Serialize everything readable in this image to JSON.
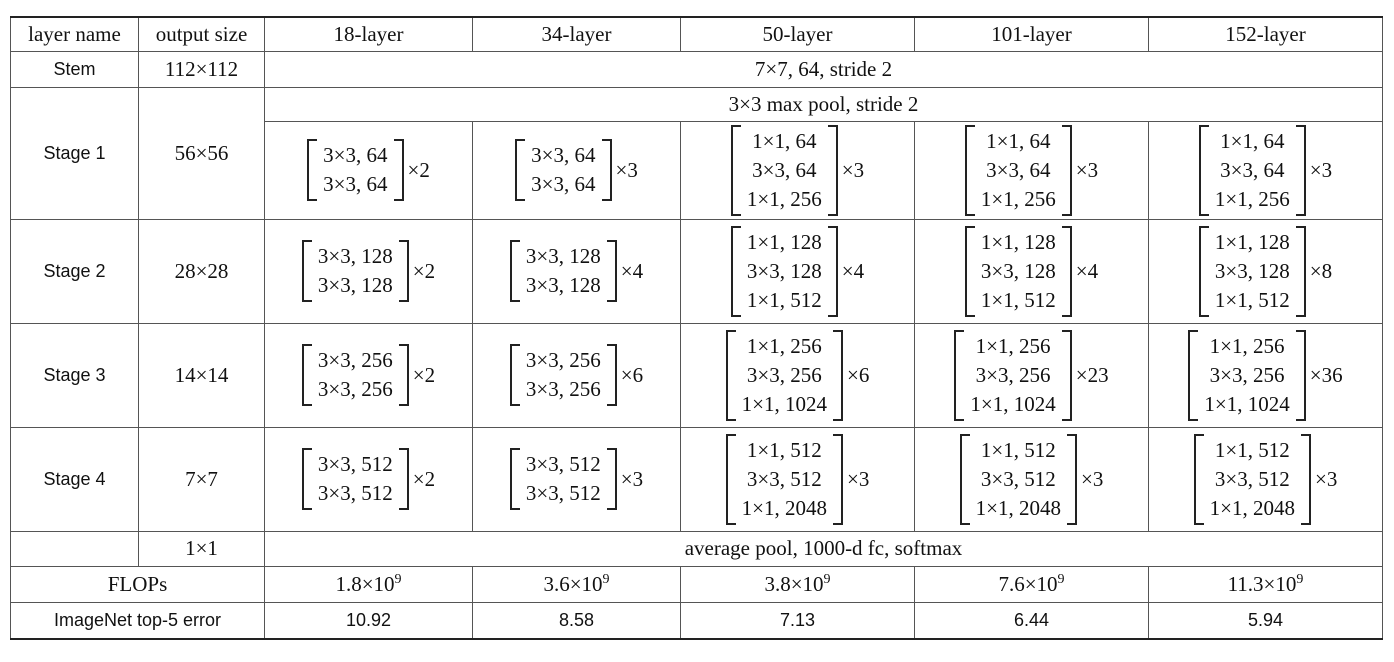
{
  "table": {
    "header": [
      "layer name",
      "output size",
      "18-layer",
      "34-layer",
      "50-layer",
      "101-layer",
      "152-layer"
    ],
    "stem": {
      "name": "Stem",
      "output": "112×112",
      "spec": "7×7, 64, stride 2"
    },
    "maxpool": "3×3 max pool, stride 2",
    "stages": [
      {
        "name": "Stage 1",
        "output": "56×56",
        "blocks": [
          {
            "lines": [
              "3×3, 64",
              "3×3, 64"
            ],
            "rep": "×2"
          },
          {
            "lines": [
              "3×3, 64",
              "3×3, 64"
            ],
            "rep": "×3"
          },
          {
            "lines": [
              "1×1, 64",
              "3×3, 64",
              "1×1, 256"
            ],
            "rep": "×3"
          },
          {
            "lines": [
              "1×1, 64",
              "3×3, 64",
              "1×1, 256"
            ],
            "rep": "×3"
          },
          {
            "lines": [
              "1×1, 64",
              "3×3, 64",
              "1×1, 256"
            ],
            "rep": "×3"
          }
        ]
      },
      {
        "name": "Stage 2",
        "output": "28×28",
        "blocks": [
          {
            "lines": [
              "3×3, 128",
              "3×3, 128"
            ],
            "rep": "×2"
          },
          {
            "lines": [
              "3×3, 128",
              "3×3, 128"
            ],
            "rep": "×4"
          },
          {
            "lines": [
              "1×1, 128",
              "3×3, 128",
              "1×1, 512"
            ],
            "rep": "×4"
          },
          {
            "lines": [
              "1×1, 128",
              "3×3, 128",
              "1×1, 512"
            ],
            "rep": "×4"
          },
          {
            "lines": [
              "1×1, 128",
              "3×3, 128",
              "1×1, 512"
            ],
            "rep": "×8"
          }
        ]
      },
      {
        "name": "Stage 3",
        "output": "14×14",
        "blocks": [
          {
            "lines": [
              "3×3, 256",
              "3×3, 256"
            ],
            "rep": "×2"
          },
          {
            "lines": [
              "3×3, 256",
              "3×3, 256"
            ],
            "rep": "×6"
          },
          {
            "lines": [
              "1×1, 256",
              "3×3, 256",
              "1×1, 1024"
            ],
            "rep": "×6"
          },
          {
            "lines": [
              "1×1, 256",
              "3×3, 256",
              "1×1, 1024"
            ],
            "rep": "×23"
          },
          {
            "lines": [
              "1×1, 256",
              "3×3, 256",
              "1×1, 1024"
            ],
            "rep": "×36"
          }
        ]
      },
      {
        "name": "Stage 4",
        "output": "7×7",
        "blocks": [
          {
            "lines": [
              "3×3, 512",
              "3×3, 512"
            ],
            "rep": "×2"
          },
          {
            "lines": [
              "3×3, 512",
              "3×3, 512"
            ],
            "rep": "×3"
          },
          {
            "lines": [
              "1×1, 512",
              "3×3, 512",
              "1×1, 2048"
            ],
            "rep": "×3"
          },
          {
            "lines": [
              "1×1, 512",
              "3×3, 512",
              "1×1, 2048"
            ],
            "rep": "×3"
          },
          {
            "lines": [
              "1×1, 512",
              "3×3, 512",
              "1×1, 2048"
            ],
            "rep": "×3"
          }
        ]
      }
    ],
    "head": {
      "output": "1×1",
      "spec": "average pool, 1000-d fc, softmax"
    },
    "flops": {
      "label": "FLOPs",
      "values": [
        {
          "mantissa": "1.8×10",
          "exp": "9"
        },
        {
          "mantissa": "3.6×10",
          "exp": "9"
        },
        {
          "mantissa": "3.8×10",
          "exp": "9"
        },
        {
          "mantissa": "7.6×10",
          "exp": "9"
        },
        {
          "mantissa": "11.3×10",
          "exp": "9"
        }
      ]
    },
    "error": {
      "label": "ImageNet top-5 error",
      "values": [
        "10.92",
        "8.58",
        "7.13",
        "6.44",
        "5.94"
      ]
    }
  }
}
